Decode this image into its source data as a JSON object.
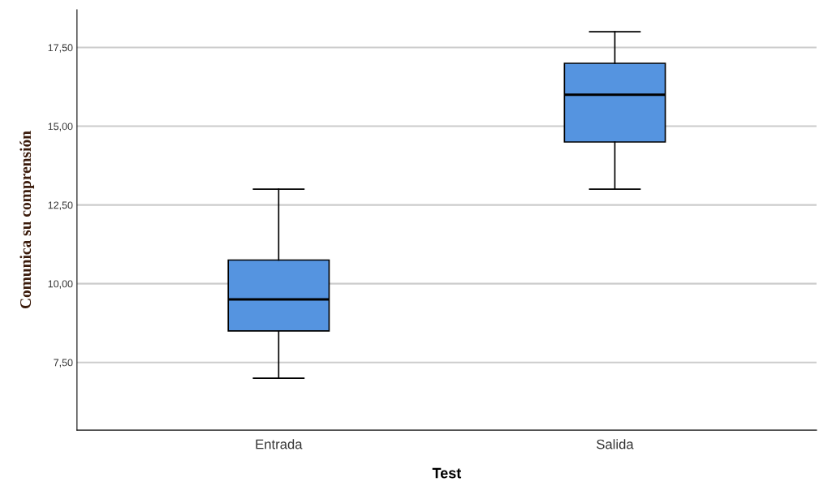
{
  "chart_data": {
    "type": "box",
    "xlabel": "Test",
    "ylabel": "Comunica su comprensión",
    "categories": [
      "Entrada",
      "Salida"
    ],
    "boxes": [
      {
        "low": 7,
        "q1": 8.5,
        "median": 9.5,
        "q3": 10.75,
        "high": 13
      },
      {
        "low": 13,
        "q1": 14.5,
        "median": 16,
        "q3": 17,
        "high": 18
      }
    ],
    "color": "#5594e0",
    "ylim": [
      5.35,
      18.7
    ],
    "yticks": [
      {
        "value": 7.5,
        "label": "7,50"
      },
      {
        "value": 10,
        "label": "10,00"
      },
      {
        "value": 12.5,
        "label": "12,50"
      },
      {
        "value": 15,
        "label": "15,00"
      },
      {
        "value": 17.5,
        "label": "17,50"
      }
    ],
    "grid": "y"
  }
}
